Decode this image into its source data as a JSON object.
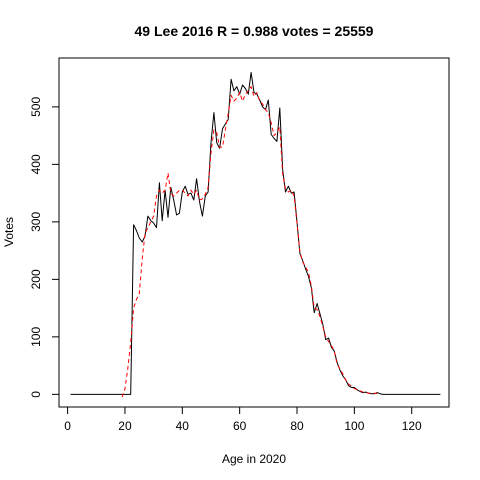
{
  "chart_data": {
    "type": "line",
    "title": "49 Lee 2016 R = 0.988 votes = 25559",
    "xlabel": "Age in 2020",
    "ylabel": "Votes",
    "xlim": [
      -3,
      133
    ],
    "ylim": [
      -22,
      585
    ],
    "xticks": [
      0,
      20,
      40,
      60,
      80,
      100,
      120
    ],
    "yticks": [
      0,
      100,
      200,
      300,
      400,
      500
    ],
    "grid": false,
    "series": [
      {
        "style": "solid",
        "color": "#000000",
        "points": [
          [
            1,
            0
          ],
          [
            22,
            0
          ],
          [
            23,
            295
          ],
          [
            24,
            285
          ],
          [
            25,
            272
          ],
          [
            26,
            265
          ],
          [
            27,
            275
          ],
          [
            28,
            310
          ],
          [
            29,
            302
          ],
          [
            30,
            298
          ],
          [
            31,
            290
          ],
          [
            32,
            368
          ],
          [
            33,
            302
          ],
          [
            34,
            355
          ],
          [
            35,
            308
          ],
          [
            36,
            360
          ],
          [
            37,
            338
          ],
          [
            38,
            312
          ],
          [
            39,
            315
          ],
          [
            40,
            352
          ],
          [
            41,
            362
          ],
          [
            42,
            348
          ],
          [
            43,
            350
          ],
          [
            44,
            338
          ],
          [
            45,
            375
          ],
          [
            46,
            335
          ],
          [
            47,
            310
          ],
          [
            48,
            345
          ],
          [
            49,
            352
          ],
          [
            50,
            438
          ],
          [
            51,
            490
          ],
          [
            52,
            438
          ],
          [
            53,
            428
          ],
          [
            54,
            462
          ],
          [
            55,
            470
          ],
          [
            56,
            478
          ],
          [
            57,
            548
          ],
          [
            58,
            528
          ],
          [
            59,
            535
          ],
          [
            60,
            522
          ],
          [
            61,
            538
          ],
          [
            62,
            532
          ],
          [
            63,
            522
          ],
          [
            64,
            560
          ],
          [
            65,
            525
          ],
          [
            66,
            522
          ],
          [
            67,
            512
          ],
          [
            68,
            500
          ],
          [
            69,
            495
          ],
          [
            70,
            512
          ],
          [
            71,
            452
          ],
          [
            72,
            445
          ],
          [
            73,
            440
          ],
          [
            74,
            498
          ],
          [
            75,
            390
          ],
          [
            76,
            352
          ],
          [
            77,
            362
          ],
          [
            78,
            350
          ],
          [
            79,
            352
          ],
          [
            80,
            300
          ],
          [
            81,
            245
          ],
          [
            82,
            232
          ],
          [
            83,
            218
          ],
          [
            84,
            205
          ],
          [
            85,
            185
          ],
          [
            86,
            142
          ],
          [
            87,
            158
          ],
          [
            88,
            140
          ],
          [
            89,
            122
          ],
          [
            90,
            95
          ],
          [
            91,
            98
          ],
          [
            92,
            82
          ],
          [
            93,
            75
          ],
          [
            94,
            55
          ],
          [
            95,
            42
          ],
          [
            96,
            32
          ],
          [
            97,
            25
          ],
          [
            98,
            15
          ],
          [
            99,
            12
          ],
          [
            100,
            12
          ],
          [
            101,
            8
          ],
          [
            102,
            5
          ],
          [
            103,
            3
          ],
          [
            104,
            4
          ],
          [
            105,
            2
          ],
          [
            106,
            1
          ],
          [
            107,
            1
          ],
          [
            108,
            3
          ],
          [
            109,
            1
          ],
          [
            110,
            0
          ],
          [
            130,
            0
          ]
        ]
      },
      {
        "style": "dashed",
        "color": "#ff0000",
        "points": [
          [
            19,
            -5
          ],
          [
            20,
            10
          ],
          [
            21,
            45
          ],
          [
            22,
            90
          ],
          [
            23,
            150
          ],
          [
            24,
            165
          ],
          [
            25,
            175
          ],
          [
            26,
            235
          ],
          [
            27,
            280
          ],
          [
            28,
            290
          ],
          [
            29,
            300
          ],
          [
            30,
            310
          ],
          [
            31,
            345
          ],
          [
            32,
            355
          ],
          [
            33,
            350
          ],
          [
            34,
            355
          ],
          [
            35,
            385
          ],
          [
            36,
            350
          ],
          [
            37,
            345
          ],
          [
            38,
            350
          ],
          [
            39,
            355
          ],
          [
            40,
            355
          ],
          [
            41,
            350
          ],
          [
            42,
            345
          ],
          [
            43,
            355
          ],
          [
            44,
            348
          ],
          [
            45,
            355
          ],
          [
            46,
            338
          ],
          [
            47,
            340
          ],
          [
            48,
            348
          ],
          [
            49,
            360
          ],
          [
            50,
            420
          ],
          [
            51,
            460
          ],
          [
            52,
            455
          ],
          [
            53,
            430
          ],
          [
            54,
            430
          ],
          [
            55,
            460
          ],
          [
            56,
            488
          ],
          [
            57,
            520
          ],
          [
            58,
            510
          ],
          [
            59,
            515
          ],
          [
            60,
            525
          ],
          [
            61,
            510
          ],
          [
            62,
            522
          ],
          [
            63,
            528
          ],
          [
            64,
            535
          ],
          [
            65,
            518
          ],
          [
            66,
            525
          ],
          [
            67,
            510
          ],
          [
            68,
            505
          ],
          [
            69,
            495
          ],
          [
            70,
            490
          ],
          [
            71,
            472
          ],
          [
            72,
            450
          ],
          [
            73,
            455
          ],
          [
            74,
            465
          ],
          [
            75,
            382
          ],
          [
            76,
            358
          ],
          [
            77,
            352
          ],
          [
            78,
            355
          ],
          [
            79,
            345
          ],
          [
            80,
            298
          ],
          [
            81,
            248
          ],
          [
            82,
            230
          ],
          [
            83,
            222
          ],
          [
            84,
            212
          ],
          [
            85,
            188
          ],
          [
            86,
            150
          ],
          [
            87,
            148
          ],
          [
            88,
            135
          ],
          [
            89,
            118
          ],
          [
            90,
            100
          ],
          [
            91,
            92
          ],
          [
            92,
            85
          ],
          [
            93,
            75
          ],
          [
            94,
            52
          ],
          [
            95,
            44
          ],
          [
            96,
            35
          ],
          [
            97,
            25
          ],
          [
            98,
            18
          ],
          [
            99,
            14
          ],
          [
            100,
            10
          ],
          [
            101,
            8
          ],
          [
            102,
            6
          ],
          [
            103,
            4
          ],
          [
            104,
            3
          ],
          [
            105,
            2
          ],
          [
            106,
            2
          ],
          [
            107,
            2
          ],
          [
            108,
            1
          ]
        ]
      }
    ]
  }
}
